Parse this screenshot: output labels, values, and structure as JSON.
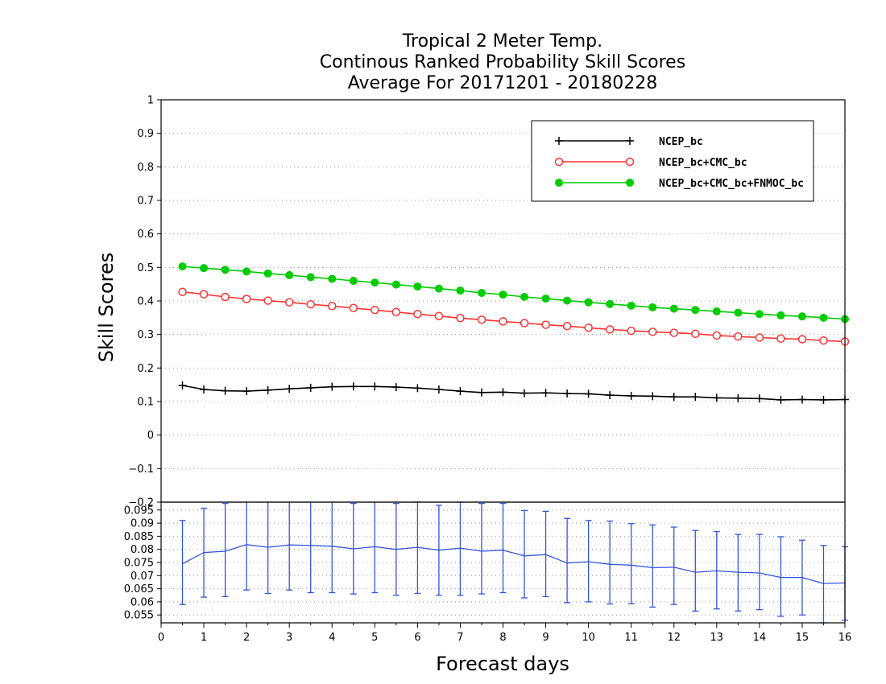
{
  "chart_data": [
    {
      "type": "line",
      "title": [
        "Tropical 2 Meter Temp.",
        "Continous Ranked Probability Skill Scores",
        "Average For 20171201 - 20180228"
      ],
      "ylabel": "Skill Scores",
      "xlim": [
        0,
        16
      ],
      "ylim": [
        -0.2,
        1
      ],
      "yticks": [
        "1",
        "0.9",
        "0.8",
        "0.7",
        "0.6",
        "0.5",
        "0.4",
        "0.3",
        "0.2",
        "0.1",
        "0",
        "−0.1",
        "−0.2"
      ],
      "grid": true,
      "legend_position": "top-right",
      "x": [
        0.5,
        1,
        1.5,
        2,
        2.5,
        3,
        3.5,
        4,
        4.5,
        5,
        5.5,
        6,
        6.5,
        7,
        7.5,
        8,
        8.5,
        9,
        9.5,
        10,
        10.5,
        11,
        11.5,
        12,
        12.5,
        13,
        13.5,
        14,
        14.5,
        15,
        15.5,
        16
      ],
      "series": [
        {
          "name": "NCEP_bc",
          "color": "#000000",
          "marker": "plus",
          "values": [
            0.148,
            0.136,
            0.132,
            0.131,
            0.134,
            0.138,
            0.141,
            0.144,
            0.145,
            0.145,
            0.143,
            0.14,
            0.136,
            0.131,
            0.127,
            0.128,
            0.125,
            0.126,
            0.124,
            0.123,
            0.119,
            0.117,
            0.116,
            0.114,
            0.114,
            0.111,
            0.11,
            0.109,
            0.105,
            0.106,
            0.105,
            0.106
          ]
        },
        {
          "name": "NCEP_bc+CMC_bc",
          "color": "#ff3333",
          "marker": "open-circle",
          "values": [
            0.427,
            0.42,
            0.412,
            0.406,
            0.401,
            0.396,
            0.39,
            0.385,
            0.379,
            0.373,
            0.367,
            0.361,
            0.355,
            0.349,
            0.344,
            0.339,
            0.334,
            0.329,
            0.325,
            0.32,
            0.315,
            0.311,
            0.308,
            0.305,
            0.302,
            0.297,
            0.294,
            0.291,
            0.288,
            0.286,
            0.282,
            0.279
          ]
        },
        {
          "name": "NCEP_bc+CMC_bc+FNMOC_bc",
          "color": "#00cc00",
          "marker": "filled-circle",
          "values": [
            0.503,
            0.498,
            0.493,
            0.488,
            0.482,
            0.477,
            0.471,
            0.466,
            0.46,
            0.455,
            0.449,
            0.443,
            0.437,
            0.431,
            0.424,
            0.419,
            0.412,
            0.407,
            0.401,
            0.396,
            0.391,
            0.386,
            0.381,
            0.377,
            0.373,
            0.369,
            0.365,
            0.361,
            0.357,
            0.354,
            0.35,
            0.346
          ]
        }
      ]
    },
    {
      "type": "line",
      "xlabel": "Forecast days",
      "xlim": [
        0,
        16
      ],
      "xticks": [
        "0",
        "1",
        "2",
        "3",
        "4",
        "5",
        "6",
        "7",
        "8",
        "9",
        "10",
        "11",
        "12",
        "13",
        "14",
        "15",
        "16"
      ],
      "ylim": [
        0.052,
        0.098
      ],
      "yticks": [
        "0.095",
        "0.09",
        "0.085",
        "0.08",
        "0.075",
        "0.07",
        "0.065",
        "0.06",
        "0.055"
      ],
      "grid": true,
      "error_bars": true,
      "x": [
        0.5,
        1,
        1.5,
        2,
        2.5,
        3,
        3.5,
        4,
        4.5,
        5,
        5.5,
        6,
        6.5,
        7,
        7.5,
        8,
        8.5,
        9,
        9.5,
        10,
        10.5,
        11,
        11.5,
        12,
        12.5,
        13,
        13.5,
        14,
        14.5,
        15,
        15.5,
        16
      ],
      "series": [
        {
          "color": "#3355dd",
          "values": [
            0.0745,
            0.0788,
            0.0793,
            0.0818,
            0.0808,
            0.0817,
            0.0815,
            0.0812,
            0.0802,
            0.081,
            0.08,
            0.0808,
            0.0797,
            0.0805,
            0.0793,
            0.0797,
            0.0775,
            0.078,
            0.0748,
            0.0753,
            0.0743,
            0.074,
            0.073,
            0.0732,
            0.0713,
            0.0718,
            0.0713,
            0.071,
            0.0693,
            0.0693,
            0.067,
            0.0672
          ],
          "lower": [
            0.059,
            0.0618,
            0.062,
            0.0645,
            0.0632,
            0.0645,
            0.0635,
            0.0635,
            0.063,
            0.0635,
            0.0625,
            0.0632,
            0.0625,
            0.0625,
            0.063,
            0.0635,
            0.0615,
            0.062,
            0.0597,
            0.06,
            0.0592,
            0.0593,
            0.058,
            0.059,
            0.0565,
            0.0573,
            0.0565,
            0.057,
            0.0545,
            0.055,
            0.052,
            0.053
          ],
          "upper": [
            0.091,
            0.0957,
            0.0975,
            0.0985,
            0.0985,
            0.0985,
            0.0985,
            0.0983,
            0.0975,
            0.0985,
            0.0975,
            0.098,
            0.0968,
            0.098,
            0.0975,
            0.0975,
            0.0948,
            0.0945,
            0.0918,
            0.091,
            0.0908,
            0.0898,
            0.0893,
            0.0885,
            0.0872,
            0.0868,
            0.0857,
            0.0857,
            0.0848,
            0.0835,
            0.0815,
            0.081
          ]
        }
      ]
    }
  ]
}
